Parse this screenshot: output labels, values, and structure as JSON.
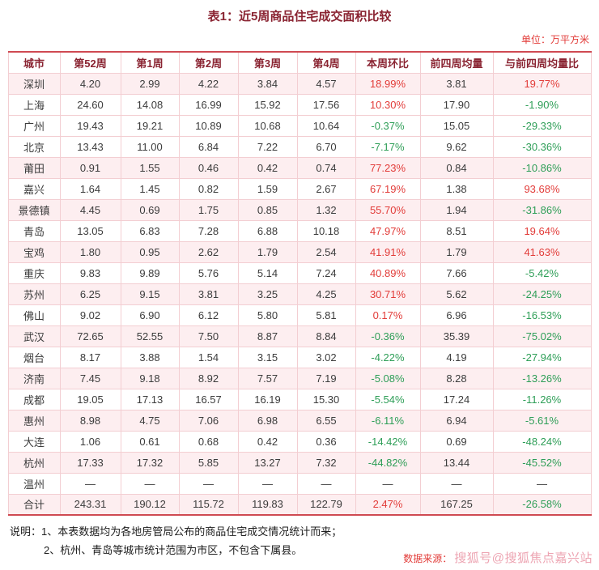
{
  "page": {
    "title": "表1：近5周商品住宅成交面积比较",
    "unit_label": "单位：万平方米"
  },
  "table": {
    "columns": [
      "城市",
      "第52周",
      "第1周",
      "第2周",
      "第3周",
      "第4周",
      "本周环比",
      "前四周均量",
      "与前四周均量比"
    ],
    "rows": [
      {
        "city": "深圳",
        "values": [
          "4.20",
          "2.99",
          "4.22",
          "3.84",
          "4.57"
        ],
        "wow": "18.99%",
        "wow_dir": "up",
        "avg4": "3.81",
        "vs_avg4": "19.77%",
        "vs_dir": "up",
        "highlight": true
      },
      {
        "city": "上海",
        "values": [
          "24.60",
          "14.08",
          "16.99",
          "15.92",
          "17.56"
        ],
        "wow": "10.30%",
        "wow_dir": "up",
        "avg4": "17.90",
        "vs_avg4": "-1.90%",
        "vs_dir": "down",
        "highlight": false
      },
      {
        "city": "广州",
        "values": [
          "19.43",
          "19.21",
          "10.89",
          "10.68",
          "10.64"
        ],
        "wow": "-0.37%",
        "wow_dir": "down",
        "avg4": "15.05",
        "vs_avg4": "-29.33%",
        "vs_dir": "down",
        "highlight": false
      },
      {
        "city": "北京",
        "values": [
          "13.43",
          "11.00",
          "6.84",
          "7.22",
          "6.70"
        ],
        "wow": "-7.17%",
        "wow_dir": "down",
        "avg4": "9.62",
        "vs_avg4": "-30.36%",
        "vs_dir": "down",
        "highlight": false
      },
      {
        "city": "莆田",
        "values": [
          "0.91",
          "1.55",
          "0.46",
          "0.42",
          "0.74"
        ],
        "wow": "77.23%",
        "wow_dir": "up",
        "avg4": "0.84",
        "vs_avg4": "-10.86%",
        "vs_dir": "down",
        "highlight": true
      },
      {
        "city": "嘉兴",
        "values": [
          "1.64",
          "1.45",
          "0.82",
          "1.59",
          "2.67"
        ],
        "wow": "67.19%",
        "wow_dir": "up",
        "avg4": "1.38",
        "vs_avg4": "93.68%",
        "vs_dir": "up",
        "highlight": false
      },
      {
        "city": "景德镇",
        "values": [
          "4.45",
          "0.69",
          "1.75",
          "0.85",
          "1.32"
        ],
        "wow": "55.70%",
        "wow_dir": "up",
        "avg4": "1.94",
        "vs_avg4": "-31.86%",
        "vs_dir": "down",
        "highlight": true
      },
      {
        "city": "青岛",
        "values": [
          "13.05",
          "6.83",
          "7.28",
          "6.88",
          "10.18"
        ],
        "wow": "47.97%",
        "wow_dir": "up",
        "avg4": "8.51",
        "vs_avg4": "19.64%",
        "vs_dir": "up",
        "highlight": false
      },
      {
        "city": "宝鸡",
        "values": [
          "1.80",
          "0.95",
          "2.62",
          "1.79",
          "2.54"
        ],
        "wow": "41.91%",
        "wow_dir": "up",
        "avg4": "1.79",
        "vs_avg4": "41.63%",
        "vs_dir": "up",
        "highlight": true
      },
      {
        "city": "重庆",
        "values": [
          "9.83",
          "9.89",
          "5.76",
          "5.14",
          "7.24"
        ],
        "wow": "40.89%",
        "wow_dir": "up",
        "avg4": "7.66",
        "vs_avg4": "-5.42%",
        "vs_dir": "down",
        "highlight": false
      },
      {
        "city": "苏州",
        "values": [
          "6.25",
          "9.15",
          "3.81",
          "3.25",
          "4.25"
        ],
        "wow": "30.71%",
        "wow_dir": "up",
        "avg4": "5.62",
        "vs_avg4": "-24.25%",
        "vs_dir": "down",
        "highlight": true
      },
      {
        "city": "佛山",
        "values": [
          "9.02",
          "6.90",
          "6.12",
          "5.80",
          "5.81"
        ],
        "wow": "0.17%",
        "wow_dir": "up",
        "avg4": "6.96",
        "vs_avg4": "-16.53%",
        "vs_dir": "down",
        "highlight": false
      },
      {
        "city": "武汉",
        "values": [
          "72.65",
          "52.55",
          "7.50",
          "8.87",
          "8.84"
        ],
        "wow": "-0.36%",
        "wow_dir": "down",
        "avg4": "35.39",
        "vs_avg4": "-75.02%",
        "vs_dir": "down",
        "highlight": true
      },
      {
        "city": "烟台",
        "values": [
          "8.17",
          "3.88",
          "1.54",
          "3.15",
          "3.02"
        ],
        "wow": "-4.22%",
        "wow_dir": "down",
        "avg4": "4.19",
        "vs_avg4": "-27.94%",
        "vs_dir": "down",
        "highlight": false
      },
      {
        "city": "济南",
        "values": [
          "7.45",
          "9.18",
          "8.92",
          "7.57",
          "7.19"
        ],
        "wow": "-5.08%",
        "wow_dir": "down",
        "avg4": "8.28",
        "vs_avg4": "-13.26%",
        "vs_dir": "down",
        "highlight": true
      },
      {
        "city": "成都",
        "values": [
          "19.05",
          "17.13",
          "16.57",
          "16.19",
          "15.30"
        ],
        "wow": "-5.54%",
        "wow_dir": "down",
        "avg4": "17.24",
        "vs_avg4": "-11.26%",
        "vs_dir": "down",
        "highlight": false
      },
      {
        "city": "惠州",
        "values": [
          "8.98",
          "4.75",
          "7.06",
          "6.98",
          "6.55"
        ],
        "wow": "-6.11%",
        "wow_dir": "down",
        "avg4": "6.94",
        "vs_avg4": "-5.61%",
        "vs_dir": "down",
        "highlight": true
      },
      {
        "city": "大连",
        "values": [
          "1.06",
          "0.61",
          "0.68",
          "0.42",
          "0.36"
        ],
        "wow": "-14.42%",
        "wow_dir": "down",
        "avg4": "0.69",
        "vs_avg4": "-48.24%",
        "vs_dir": "down",
        "highlight": false
      },
      {
        "city": "杭州",
        "values": [
          "17.33",
          "17.32",
          "5.85",
          "13.27",
          "7.32"
        ],
        "wow": "-44.82%",
        "wow_dir": "down",
        "avg4": "13.44",
        "vs_avg4": "-45.52%",
        "vs_dir": "down",
        "highlight": true
      },
      {
        "city": "温州",
        "values": [
          "—",
          "—",
          "—",
          "—",
          "—"
        ],
        "wow": "—",
        "wow_dir": null,
        "avg4": "—",
        "vs_avg4": "—",
        "vs_dir": null,
        "highlight": false
      },
      {
        "city": "合计",
        "values": [
          "243.31",
          "190.12",
          "115.72",
          "119.83",
          "122.79"
        ],
        "wow": "2.47%",
        "wow_dir": "up",
        "avg4": "167.25",
        "vs_avg4": "-26.58%",
        "vs_dir": "down",
        "highlight": true,
        "total": true
      }
    ]
  },
  "notes": {
    "label": "说明：",
    "items": [
      "1、本表数据均为各地房管局公布的商品住宅成交情况统计而来；",
      "2、杭州、青岛等城市统计范围为市区，不包含下属县。"
    ]
  },
  "footer": {
    "source_label": "数据来源：",
    "watermark": "搜狐号@搜狐焦点嘉兴站"
  },
  "colors": {
    "positive": "#e23c39",
    "negative": "#2e9e57",
    "header_text": "#8a2432",
    "row_highlight": "#fdeef0",
    "grid": "#f3ced2",
    "frame": "#cf4a52",
    "accent": "#e23c39",
    "watermark": "#eda4b2"
  }
}
